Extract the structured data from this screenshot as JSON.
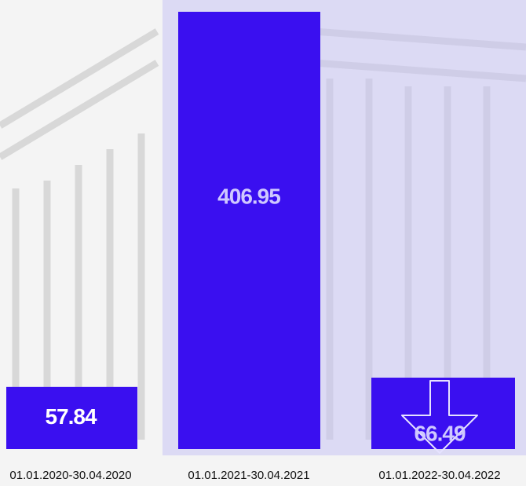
{
  "chart_data": {
    "type": "bar",
    "categories": [
      "01.01.2020-30.04.2020",
      "01.01.2021-30.04.2021",
      "01.01.2022-30.04.2022"
    ],
    "values": [
      57.84,
      406.95,
      66.49
    ],
    "color": "#3a0ff0"
  }
}
